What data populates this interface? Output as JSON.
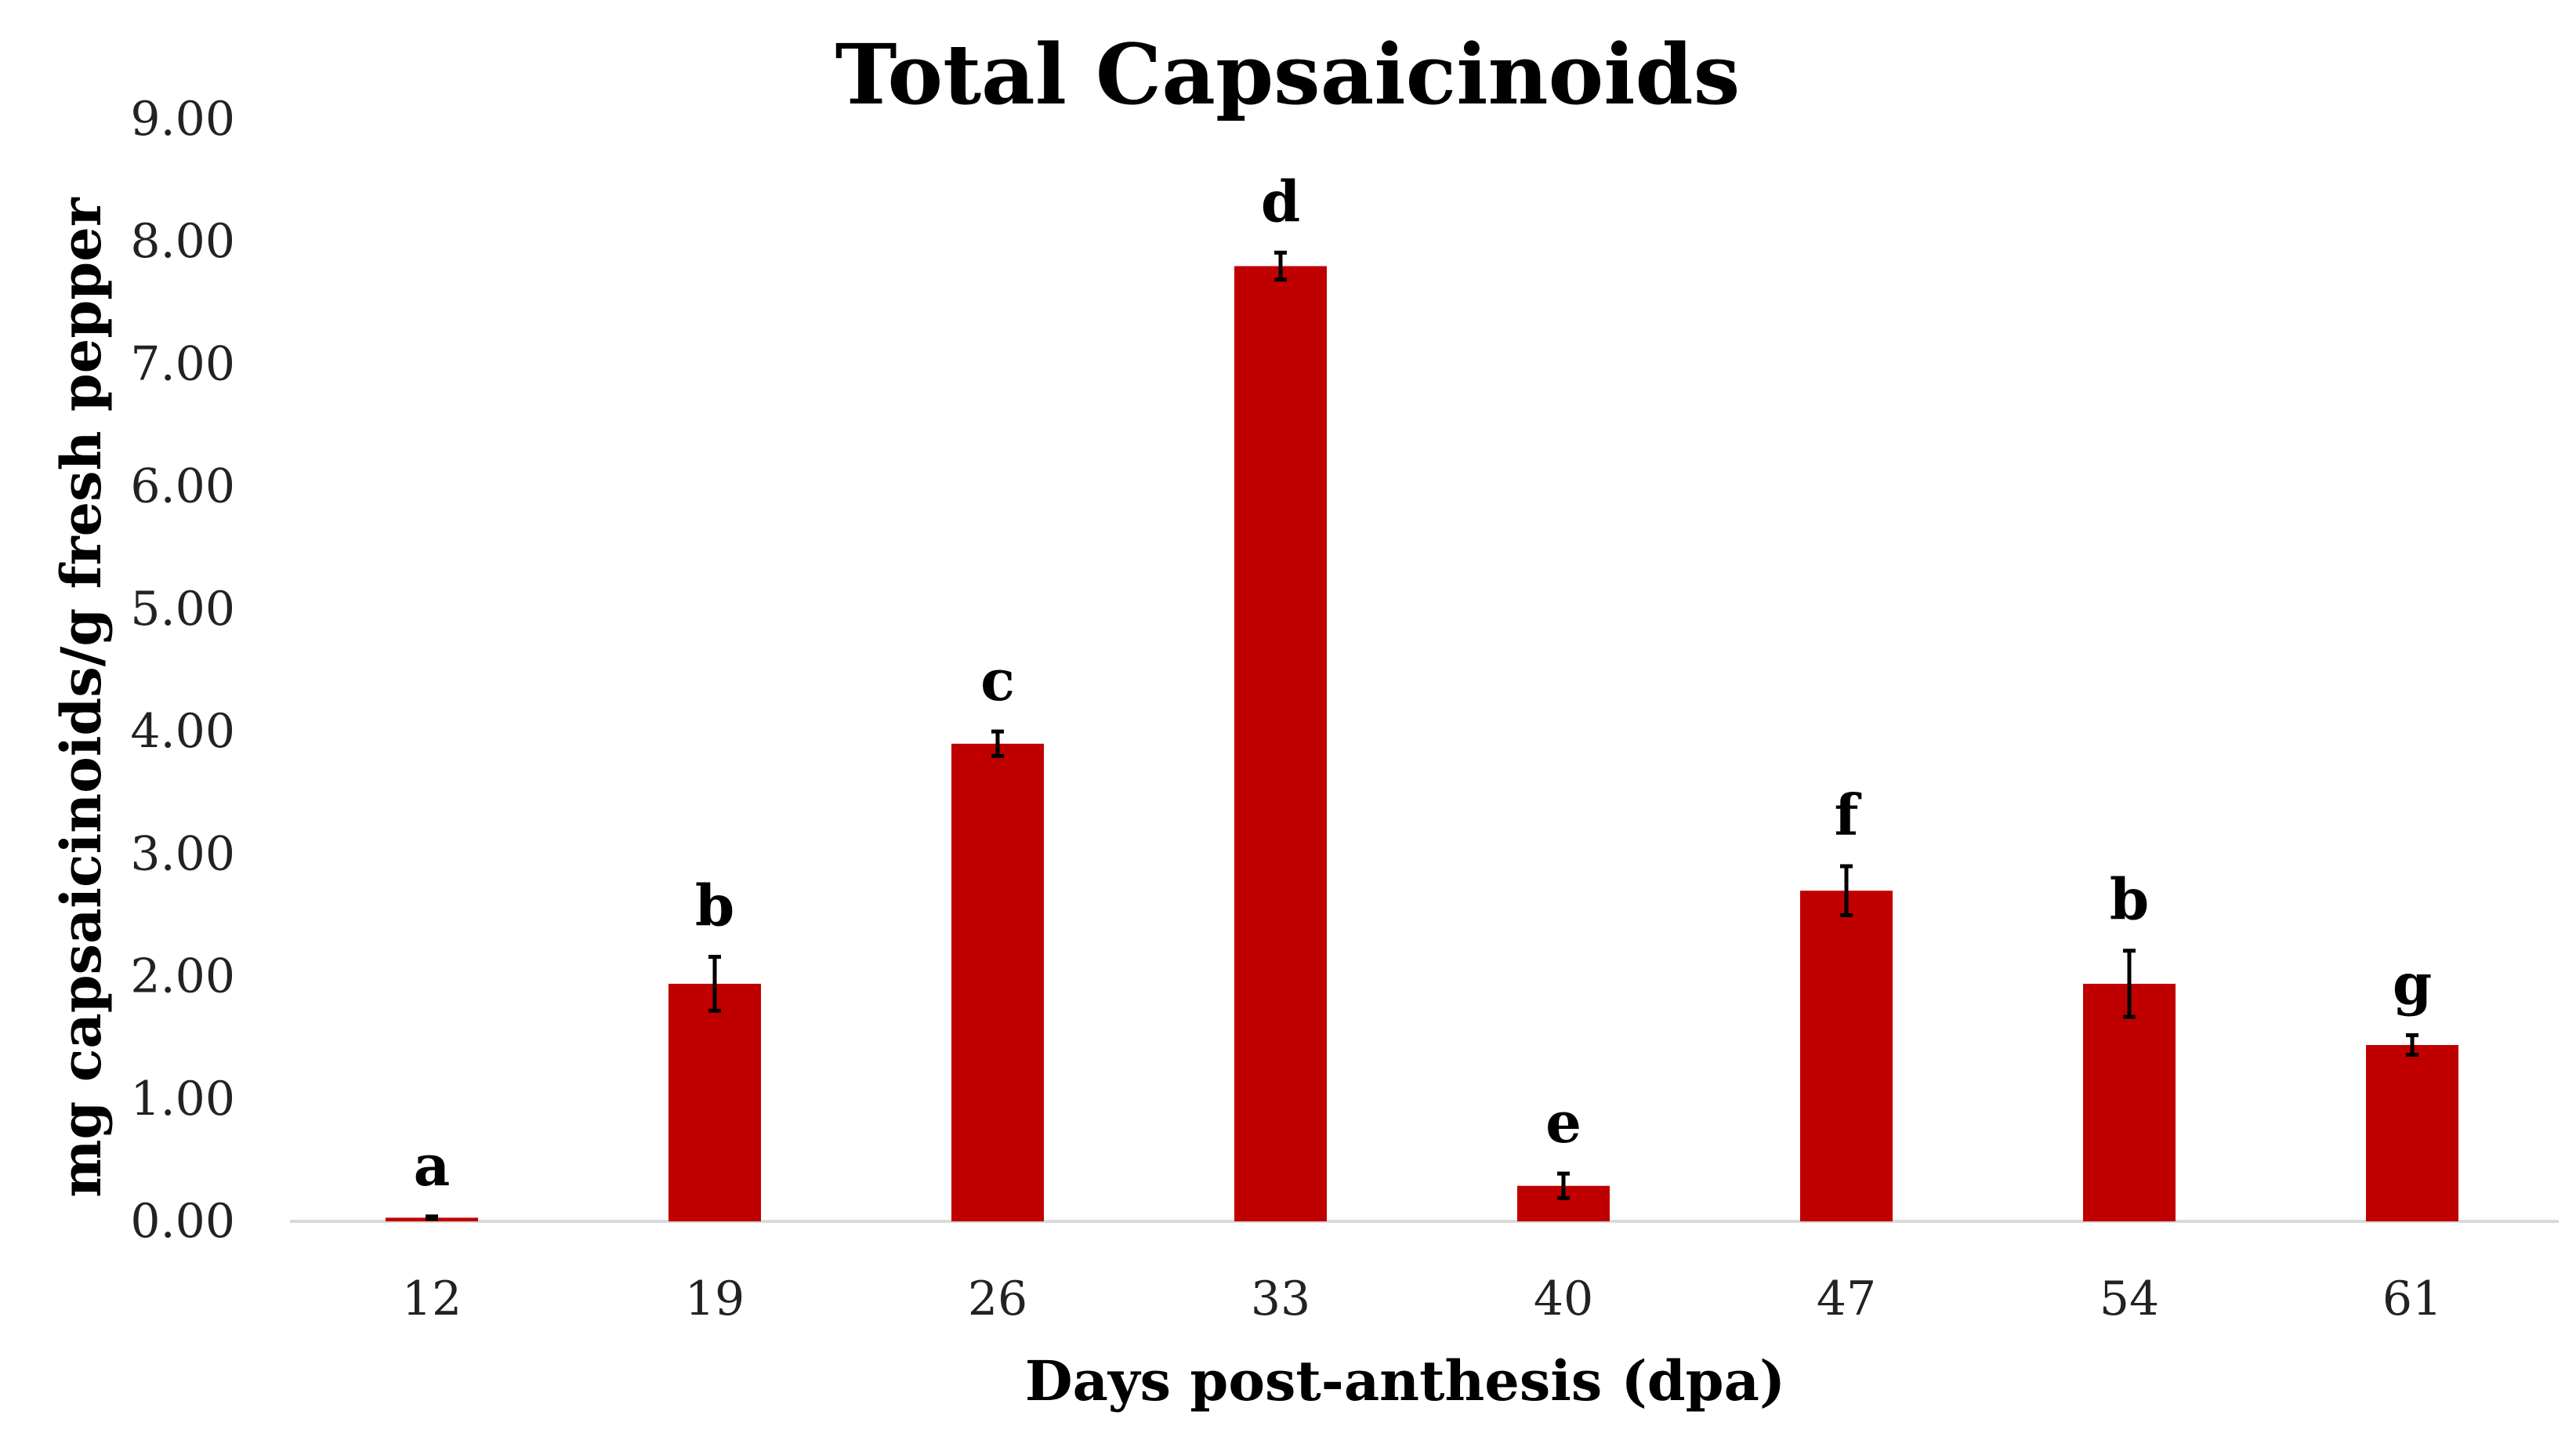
{
  "chart_data": {
    "type": "bar",
    "title": "Total Capsaicinoids",
    "xlabel": "Days post-anthesis (dpa)",
    "ylabel": "mg capsaicinoids/g fresh pepper",
    "categories": [
      "12",
      "19",
      "26",
      "33",
      "40",
      "47",
      "54",
      "61"
    ],
    "values": [
      0.03,
      1.94,
      3.9,
      7.8,
      0.29,
      2.7,
      1.94,
      1.44
    ],
    "error": [
      0.01,
      0.22,
      0.1,
      0.11,
      0.1,
      0.2,
      0.27,
      0.08
    ],
    "significance": [
      "a",
      "b",
      "c",
      "d",
      "e",
      "f",
      "b",
      "g"
    ],
    "y_ticks": [
      "0.00",
      "1.00",
      "2.00",
      "3.00",
      "4.00",
      "5.00",
      "6.00",
      "7.00",
      "8.00",
      "9.00"
    ],
    "ylim": [
      0,
      9
    ],
    "grid": false,
    "legend": "none",
    "bar_color": "#c00000",
    "error_color": "#000000"
  }
}
